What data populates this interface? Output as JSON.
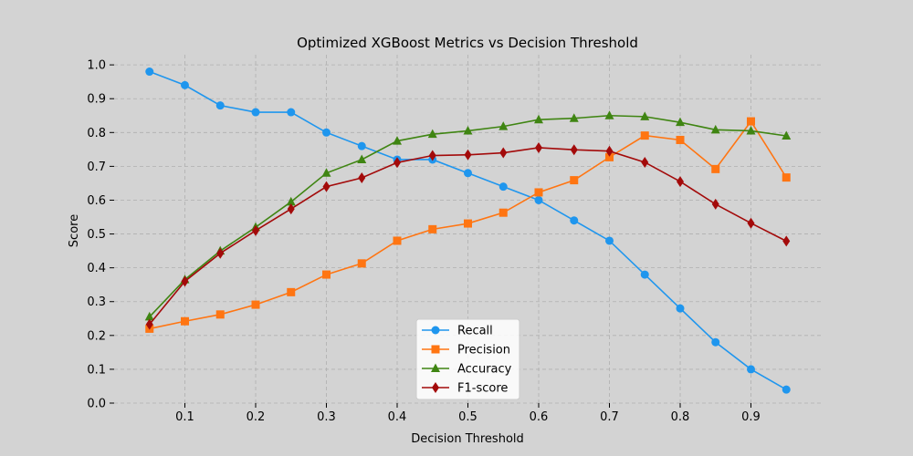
{
  "chart_data": {
    "type": "line",
    "title": "Optimized XGBoost Metrics vs Decision Threshold",
    "xlabel": "Decision Threshold",
    "ylabel": "Score",
    "xlim": [
      0.0,
      1.0
    ],
    "ylim": [
      0.0,
      1.03
    ],
    "xticks": [
      0.1,
      0.2,
      0.3,
      0.4,
      0.5,
      0.6,
      0.7,
      0.8,
      0.9
    ],
    "xtick_labels": [
      "0.1",
      "0.2",
      "0.3",
      "0.4",
      "0.5",
      "0.6",
      "0.7",
      "0.8",
      "0.9"
    ],
    "yticks": [
      0.0,
      0.1,
      0.2,
      0.3,
      0.4,
      0.5,
      0.6,
      0.7,
      0.8,
      0.9,
      1.0
    ],
    "ytick_labels": [
      "0.0",
      "0.1",
      "0.2",
      "0.3",
      "0.4",
      "0.5",
      "0.6",
      "0.7",
      "0.8",
      "0.9",
      "1.0"
    ],
    "grid": true,
    "legend_position": "bottom-center",
    "x": [
      0.05,
      0.1,
      0.15,
      0.2,
      0.25,
      0.3,
      0.35,
      0.4,
      0.45,
      0.5,
      0.55,
      0.6,
      0.65,
      0.7,
      0.75,
      0.8,
      0.85,
      0.9,
      0.95
    ],
    "series": [
      {
        "name": "Recall",
        "color": "#1f96ee",
        "marker": "circle",
        "values": [
          0.98,
          0.94,
          0.88,
          0.86,
          0.86,
          0.8,
          0.76,
          0.72,
          0.72,
          0.68,
          0.64,
          0.6,
          0.54,
          0.48,
          0.38,
          0.28,
          0.18,
          0.1,
          0.04
        ]
      },
      {
        "name": "Precision",
        "color": "#ff7512",
        "marker": "square",
        "values": [
          0.22,
          0.242,
          0.262,
          0.291,
          0.328,
          0.38,
          0.413,
          0.48,
          0.514,
          0.531,
          0.563,
          0.623,
          0.659,
          0.727,
          0.791,
          0.778,
          0.692,
          0.833,
          0.667
        ]
      },
      {
        "name": "Accuracy",
        "color": "#3f8512",
        "marker": "triangle",
        "values": [
          0.255,
          0.365,
          0.45,
          0.52,
          0.595,
          0.68,
          0.72,
          0.775,
          0.795,
          0.805,
          0.818,
          0.838,
          0.842,
          0.85,
          0.847,
          0.83,
          0.808,
          0.805,
          0.79
        ]
      },
      {
        "name": "F1-score",
        "color": "#a30a0a",
        "marker": "diamond",
        "values": [
          0.233,
          0.36,
          0.443,
          0.51,
          0.574,
          0.64,
          0.666,
          0.711,
          0.732,
          0.734,
          0.74,
          0.755,
          0.749,
          0.745,
          0.712,
          0.655,
          0.588,
          0.532,
          0.479
        ]
      }
    ]
  }
}
